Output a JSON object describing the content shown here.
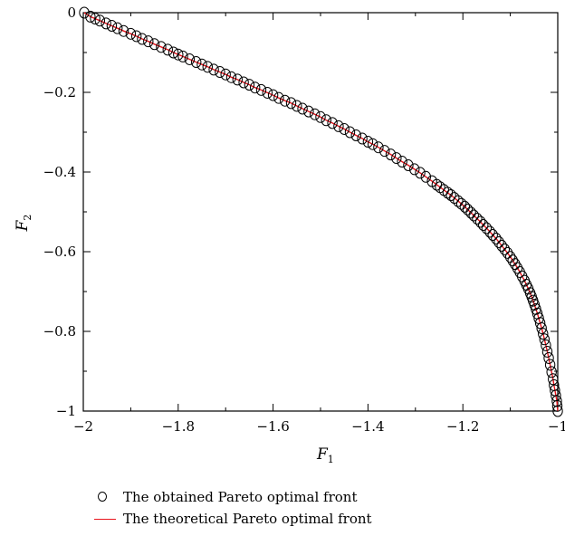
{
  "chart_data": {
    "type": "scatter",
    "xlabel": "F",
    "xlabel_sub": "1",
    "ylabel": "F",
    "ylabel_sub": "2",
    "xlim": [
      -2,
      -1
    ],
    "ylim": [
      -1,
      0
    ],
    "xticks": [
      -2,
      -1.8,
      -1.6,
      -1.4,
      -1.2,
      -1
    ],
    "yticks": [
      0,
      -0.2,
      -0.4,
      -0.6,
      -0.8,
      -1
    ],
    "xtick_labels": [
      "−2",
      "−1.8",
      "−1.6",
      "−1.4",
      "−1.2",
      "−1"
    ],
    "ytick_labels": [
      "0",
      "−0.2",
      "−0.4",
      "−0.6",
      "−0.8",
      "−1"
    ],
    "grid": false,
    "legend_position": "bottom",
    "series": [
      {
        "name": "The obtained Pareto optimal front",
        "marker": "open-circle",
        "color": "#000000",
        "x": [
          -1.998,
          -1.985,
          -1.975,
          -1.965,
          -1.952,
          -1.94,
          -1.928,
          -1.915,
          -1.9,
          -1.888,
          -1.876,
          -1.863,
          -1.85,
          -1.836,
          -1.822,
          -1.81,
          -1.8,
          -1.79,
          -1.776,
          -1.762,
          -1.75,
          -1.738,
          -1.725,
          -1.712,
          -1.7,
          -1.688,
          -1.675,
          -1.662,
          -1.65,
          -1.638,
          -1.625,
          -1.612,
          -1.6,
          -1.588,
          -1.575,
          -1.562,
          -1.55,
          -1.538,
          -1.525,
          -1.512,
          -1.5,
          -1.488,
          -1.475,
          -1.462,
          -1.45,
          -1.438,
          -1.425,
          -1.412,
          -1.4,
          -1.39,
          -1.378,
          -1.365,
          -1.352,
          -1.34,
          -1.328,
          -1.315,
          -1.302,
          -1.29,
          -1.278,
          -1.265,
          -1.255,
          -1.248,
          -1.24,
          -1.232,
          -1.225,
          -1.218,
          -1.21,
          -1.203,
          -1.196,
          -1.19,
          -1.183,
          -1.177,
          -1.17,
          -1.163,
          -1.157,
          -1.15,
          -1.143,
          -1.137,
          -1.13,
          -1.124,
          -1.118,
          -1.112,
          -1.106,
          -1.1,
          -1.095,
          -1.09,
          -1.085,
          -1.08,
          -1.075,
          -1.07,
          -1.066,
          -1.062,
          -1.058,
          -1.055,
          -1.052,
          -1.049,
          -1.046,
          -1.043,
          -1.04,
          -1.037,
          -1.034,
          -1.031,
          -1.028,
          -1.025,
          -1.022,
          -1.019,
          -1.016,
          -1.013,
          -1.01,
          -1.008,
          -1.006,
          -1.004,
          -1.002,
          -1.001,
          -1.0
        ],
        "y": [
          0.0,
          -0.01,
          -0.015,
          -0.02,
          -0.027,
          -0.033,
          -0.039,
          -0.046,
          -0.053,
          -0.059,
          -0.066,
          -0.072,
          -0.079,
          -0.086,
          -0.093,
          -0.1,
          -0.105,
          -0.11,
          -0.117,
          -0.124,
          -0.13,
          -0.136,
          -0.143,
          -0.149,
          -0.155,
          -0.162,
          -0.168,
          -0.175,
          -0.181,
          -0.188,
          -0.194,
          -0.201,
          -0.207,
          -0.214,
          -0.221,
          -0.227,
          -0.234,
          -0.241,
          -0.248,
          -0.255,
          -0.262,
          -0.27,
          -0.277,
          -0.285,
          -0.292,
          -0.3,
          -0.308,
          -0.316,
          -0.324,
          -0.33,
          -0.338,
          -0.347,
          -0.356,
          -0.365,
          -0.374,
          -0.383,
          -0.393,
          -0.402,
          -0.412,
          -0.423,
          -0.432,
          -0.438,
          -0.445,
          -0.452,
          -0.458,
          -0.465,
          -0.473,
          -0.48,
          -0.487,
          -0.494,
          -0.502,
          -0.509,
          -0.517,
          -0.525,
          -0.533,
          -0.541,
          -0.55,
          -0.558,
          -0.567,
          -0.576,
          -0.585,
          -0.594,
          -0.603,
          -0.613,
          -0.622,
          -0.631,
          -0.641,
          -0.651,
          -0.662,
          -0.673,
          -0.683,
          -0.693,
          -0.704,
          -0.713,
          -0.723,
          -0.733,
          -0.744,
          -0.755,
          -0.767,
          -0.779,
          -0.792,
          -0.806,
          -0.82,
          -0.835,
          -0.851,
          -0.867,
          -0.884,
          -0.902,
          -0.92,
          -0.935,
          -0.948,
          -0.961,
          -0.975,
          -0.987,
          -1.0
        ]
      },
      {
        "name": "The theoretical Pareto optimal front",
        "marker": "line",
        "color": "#e8141c"
      }
    ]
  }
}
